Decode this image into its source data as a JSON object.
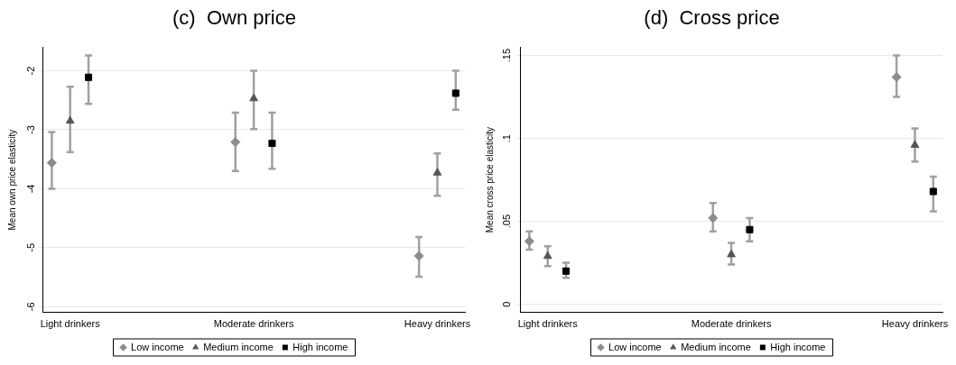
{
  "chart_data": [
    {
      "type": "scatter",
      "title": "(c)  Own price",
      "ylabel": "Mean own price elasticity",
      "categories": [
        "Light drinkers",
        "Moderate drinkers",
        "Heavy drinkers"
      ],
      "ylim": [
        -6.1,
        -1.6
      ],
      "yticks": [
        -2,
        -3,
        -4,
        -5,
        -6
      ],
      "grid": "y",
      "legend": "bottom",
      "series": [
        {
          "name": "Low income",
          "color": "#8c8c8c",
          "marker": "diamond",
          "values": [
            -3.56,
            -3.21,
            -5.14
          ],
          "errors": [
            [
              -4.0,
              -3.04
            ],
            [
              -3.7,
              -2.71
            ],
            [
              -5.49,
              -4.82
            ]
          ]
        },
        {
          "name": "Medium income",
          "color": "#555555",
          "marker": "triangle",
          "values": [
            -2.85,
            -2.47,
            -3.73
          ],
          "errors": [
            [
              -3.38,
              -2.27
            ],
            [
              -2.99,
              -2.0
            ],
            [
              -4.12,
              -3.4
            ]
          ]
        },
        {
          "name": "High income",
          "color": "#000000",
          "marker": "square",
          "values": [
            -2.11,
            -3.23,
            -2.38
          ],
          "errors": [
            [
              -2.56,
              -1.74
            ],
            [
              -3.66,
              -2.71
            ],
            [
              -2.66,
              -2.0
            ]
          ]
        }
      ]
    },
    {
      "type": "scatter",
      "title": "(d)  Cross price",
      "ylabel": "Mean cross price elasticity",
      "categories": [
        "Light drinkers",
        "Moderate drinkers",
        "Heavy drinkers"
      ],
      "ylim": [
        -0.005,
        0.155
      ],
      "yticks": [
        0,
        {
          "value": 0.05,
          "label": ".05"
        },
        {
          "value": 0.1,
          "label": ".1"
        },
        {
          "value": 0.15,
          "label": ".15"
        }
      ],
      "grid": "y",
      "legend": "bottom",
      "series": [
        {
          "name": "Low income",
          "color": "#8c8c8c",
          "marker": "diamond",
          "values": [
            0.038,
            0.052,
            0.137
          ],
          "errors": [
            [
              0.033,
              0.044
            ],
            [
              0.044,
              0.061
            ],
            [
              0.125,
              0.15
            ]
          ]
        },
        {
          "name": "Medium income",
          "color": "#555555",
          "marker": "triangle",
          "values": [
            0.029,
            0.03,
            0.096
          ],
          "errors": [
            [
              0.023,
              0.035
            ],
            [
              0.024,
              0.037
            ],
            [
              0.086,
              0.106
            ]
          ]
        },
        {
          "name": "High income",
          "color": "#000000",
          "marker": "square",
          "values": [
            0.02,
            0.045,
            0.068
          ],
          "errors": [
            [
              0.016,
              0.025
            ],
            [
              0.038,
              0.052
            ],
            [
              0.056,
              0.077
            ]
          ]
        }
      ]
    }
  ]
}
